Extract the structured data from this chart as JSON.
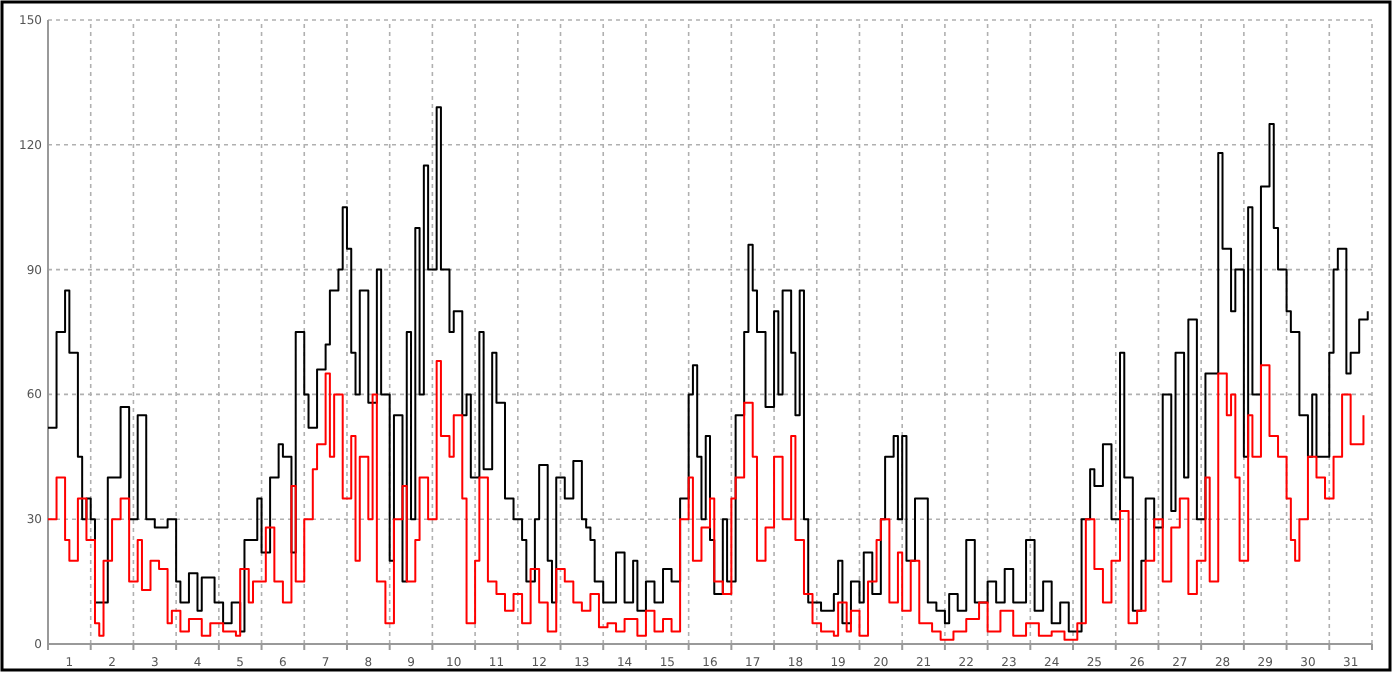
{
  "chart_data": {
    "type": "step",
    "xlim": [
      0.5,
      31.5
    ],
    "xticks": [
      {
        "value": 0.5,
        "label": null
      },
      1,
      {
        "value": 1.5,
        "label": null
      },
      2,
      {
        "value": 2.5,
        "label": null
      },
      3,
      {
        "value": 3.5,
        "label": null
      },
      4,
      {
        "value": 4.5,
        "label": null
      },
      5,
      {
        "value": 5.5,
        "label": null
      },
      6,
      {
        "value": 6.5,
        "label": null
      },
      7,
      {
        "value": 7.5,
        "label": null
      },
      8,
      {
        "value": 8.5,
        "label": null
      },
      9,
      {
        "value": 9.5,
        "label": null
      },
      10,
      {
        "value": 10.5,
        "label": null
      },
      11,
      {
        "value": 11.5,
        "label": null
      },
      12,
      {
        "value": 12.5,
        "label": null
      },
      13,
      {
        "value": 13.5,
        "label": null
      },
      14,
      {
        "value": 14.5,
        "label": null
      },
      15,
      {
        "value": 15.5,
        "label": null
      },
      16,
      {
        "value": 16.5,
        "label": null
      },
      17,
      {
        "value": 17.5,
        "label": null
      },
      18,
      {
        "value": 18.5,
        "label": null
      },
      19,
      {
        "value": 19.5,
        "label": null
      },
      20,
      {
        "value": 20.5,
        "label": null
      },
      21,
      {
        "value": 21.5,
        "label": null
      },
      22,
      {
        "value": 22.5,
        "label": null
      },
      23,
      {
        "value": 23.5,
        "label": null
      },
      24,
      {
        "value": 24.5,
        "label": null
      },
      25,
      {
        "value": 25.5,
        "label": null
      },
      26,
      {
        "value": 26.5,
        "label": null
      },
      27,
      {
        "value": 27.5,
        "label": null
      },
      28,
      {
        "value": 28.5,
        "label": null
      },
      29,
      {
        "value": 29.5,
        "label": null
      },
      30,
      {
        "value": 30.5,
        "label": null
      },
      31,
      {
        "value": 31.5,
        "label": null
      }
    ],
    "ylim": [
      0,
      150
    ],
    "yticks": [
      0,
      30,
      60,
      90,
      120,
      150
    ],
    "grid": true,
    "marker": "none",
    "line_style": "solid",
    "series": [
      {
        "color": "#000000",
        "x": [
          0.5,
          0.7,
          0.9,
          1.0,
          1.2,
          1.3,
          1.4,
          1.5,
          1.6,
          1.9,
          2.2,
          2.4,
          2.6,
          2.8,
          3.0,
          3.3,
          3.5,
          3.6,
          3.8,
          4.0,
          4.1,
          4.4,
          4.6,
          4.8,
          5.0,
          5.1,
          5.4,
          5.5,
          5.7,
          5.9,
          6.0,
          6.2,
          6.3,
          6.5,
          6.6,
          6.8,
          7.0,
          7.1,
          7.3,
          7.4,
          7.5,
          7.6,
          7.7,
          7.8,
          8.0,
          8.2,
          8.3,
          8.5,
          8.6,
          8.8,
          8.9,
          9.0,
          9.1,
          9.2,
          9.3,
          9.4,
          9.6,
          9.7,
          9.9,
          10.0,
          10.2,
          10.3,
          10.4,
          10.6,
          10.7,
          10.9,
          11.0,
          11.2,
          11.4,
          11.6,
          11.7,
          11.9,
          12.0,
          12.2,
          12.3,
          12.4,
          12.6,
          12.8,
          13.0,
          13.1,
          13.2,
          13.3,
          13.5,
          13.8,
          14.0,
          14.2,
          14.3,
          14.5,
          14.7,
          14.9,
          15.1,
          15.3,
          15.5,
          15.6,
          15.7,
          15.8,
          15.9,
          16.0,
          16.1,
          16.3,
          16.4,
          16.6,
          16.8,
          16.9,
          17.0,
          17.1,
          17.3,
          17.5,
          17.6,
          17.7,
          17.9,
          18.0,
          18.1,
          18.2,
          18.3,
          18.6,
          18.9,
          19.0,
          19.1,
          19.3,
          19.5,
          19.6,
          19.8,
          20.0,
          20.1,
          20.3,
          20.4,
          20.5,
          20.6,
          20.8,
          21.1,
          21.3,
          21.5,
          21.6,
          21.8,
          22.0,
          22.2,
          22.5,
          22.7,
          22.9,
          23.1,
          23.4,
          23.6,
          23.8,
          24.0,
          24.2,
          24.4,
          24.7,
          24.9,
          25.0,
          25.2,
          25.4,
          25.6,
          25.7,
          25.9,
          26.1,
          26.2,
          26.4,
          26.6,
          26.8,
          26.9,
          27.1,
          27.2,
          27.4,
          27.6,
          27.9,
          28.0,
          28.2,
          28.3,
          28.5,
          28.6,
          28.7,
          28.9,
          29.1,
          29.2,
          29.3,
          29.5,
          29.6,
          29.8,
          30.0,
          30.1,
          30.2,
          30.5,
          30.6,
          30.7,
          30.9,
          31.0,
          31.2,
          31.4
        ],
        "values": [
          52,
          75,
          85,
          70,
          45,
          30,
          35,
          30,
          10,
          40,
          57,
          30,
          55,
          30,
          28,
          30,
          15,
          10,
          17,
          8,
          16,
          10,
          5,
          10,
          3,
          25,
          35,
          22,
          40,
          48,
          45,
          22,
          75,
          60,
          52,
          66,
          72,
          85,
          90,
          105,
          95,
          70,
          60,
          85,
          58,
          90,
          60,
          20,
          55,
          15,
          75,
          30,
          100,
          60,
          115,
          90,
          129,
          90,
          75,
          80,
          55,
          60,
          40,
          75,
          42,
          70,
          58,
          35,
          30,
          25,
          15,
          30,
          43,
          20,
          10,
          40,
          35,
          44,
          30,
          28,
          25,
          15,
          10,
          22,
          10,
          20,
          8,
          15,
          10,
          18,
          15,
          35,
          60,
          67,
          45,
          30,
          50,
          25,
          12,
          30,
          15,
          55,
          75,
          96,
          85,
          75,
          57,
          80,
          60,
          85,
          70,
          55,
          85,
          30,
          10,
          8,
          12,
          20,
          5,
          15,
          10,
          22,
          12,
          30,
          45,
          50,
          30,
          50,
          20,
          35,
          10,
          8,
          5,
          12,
          8,
          25,
          10,
          15,
          10,
          18,
          10,
          25,
          8,
          15,
          5,
          10,
          3,
          30,
          42,
          38,
          48,
          30,
          70,
          40,
          8,
          20,
          35,
          28,
          60,
          32,
          70,
          40,
          78,
          30,
          65,
          118,
          95,
          80,
          90,
          45,
          105,
          60,
          110,
          125,
          100,
          90,
          80,
          75,
          55,
          45,
          60,
          45,
          70,
          90,
          95,
          65,
          70,
          78,
          80
        ]
      },
      {
        "color": "#ff0000",
        "x": [
          0.5,
          0.7,
          0.9,
          1.0,
          1.2,
          1.4,
          1.6,
          1.7,
          1.8,
          2.0,
          2.2,
          2.4,
          2.6,
          2.7,
          2.9,
          3.1,
          3.3,
          3.4,
          3.6,
          3.8,
          4.1,
          4.3,
          4.6,
          4.9,
          5.0,
          5.2,
          5.3,
          5.6,
          5.8,
          6.0,
          6.2,
          6.3,
          6.5,
          6.7,
          6.8,
          7.0,
          7.1,
          7.2,
          7.4,
          7.6,
          7.7,
          7.8,
          8.0,
          8.1,
          8.2,
          8.4,
          8.6,
          8.8,
          8.9,
          9.1,
          9.2,
          9.4,
          9.6,
          9.7,
          9.9,
          10.0,
          10.2,
          10.3,
          10.5,
          10.6,
          10.8,
          11.0,
          11.2,
          11.4,
          11.6,
          11.8,
          12.0,
          12.2,
          12.4,
          12.6,
          12.8,
          13.0,
          13.2,
          13.4,
          13.6,
          13.8,
          14.0,
          14.3,
          14.5,
          14.7,
          14.9,
          15.1,
          15.3,
          15.5,
          15.6,
          15.8,
          16.0,
          16.1,
          16.3,
          16.5,
          16.6,
          16.8,
          17.0,
          17.1,
          17.3,
          17.5,
          17.7,
          17.9,
          18.0,
          18.2,
          18.4,
          18.6,
          18.9,
          19.0,
          19.2,
          19.3,
          19.5,
          19.7,
          19.9,
          20.0,
          20.2,
          20.4,
          20.5,
          20.7,
          20.9,
          21.2,
          21.4,
          21.7,
          22.0,
          22.3,
          22.5,
          22.8,
          23.1,
          23.4,
          23.7,
          24.0,
          24.3,
          24.6,
          24.8,
          25.0,
          25.2,
          25.4,
          25.6,
          25.8,
          26.0,
          26.2,
          26.4,
          26.6,
          26.8,
          27.0,
          27.2,
          27.4,
          27.6,
          27.7,
          27.9,
          28.1,
          28.2,
          28.3,
          28.4,
          28.6,
          28.7,
          28.9,
          29.1,
          29.3,
          29.5,
          29.6,
          29.7,
          29.8,
          30.0,
          30.2,
          30.4,
          30.6,
          30.8,
          31.0,
          31.3
        ],
        "values": [
          30,
          40,
          25,
          20,
          35,
          25,
          5,
          2,
          20,
          30,
          35,
          15,
          25,
          13,
          20,
          18,
          5,
          8,
          3,
          6,
          2,
          5,
          3,
          2,
          18,
          10,
          15,
          28,
          15,
          10,
          38,
          15,
          30,
          42,
          48,
          65,
          45,
          60,
          35,
          50,
          20,
          45,
          30,
          60,
          15,
          5,
          30,
          38,
          15,
          25,
          40,
          30,
          68,
          50,
          45,
          55,
          35,
          5,
          20,
          40,
          15,
          12,
          8,
          12,
          5,
          18,
          10,
          3,
          18,
          15,
          10,
          8,
          12,
          4,
          5,
          3,
          6,
          2,
          8,
          3,
          6,
          3,
          30,
          40,
          20,
          28,
          35,
          15,
          12,
          35,
          40,
          58,
          45,
          20,
          28,
          45,
          30,
          50,
          25,
          12,
          5,
          3,
          2,
          10,
          3,
          8,
          2,
          15,
          25,
          30,
          10,
          22,
          8,
          20,
          5,
          3,
          1,
          3,
          6,
          10,
          3,
          8,
          2,
          5,
          2,
          3,
          1,
          5,
          30,
          18,
          10,
          20,
          32,
          5,
          8,
          20,
          30,
          15,
          28,
          35,
          12,
          20,
          40,
          15,
          65,
          55,
          60,
          40,
          20,
          55,
          45,
          67,
          50,
          45,
          35,
          25,
          20,
          30,
          45,
          40,
          35,
          45,
          60,
          48,
          55
        ]
      }
    ]
  }
}
